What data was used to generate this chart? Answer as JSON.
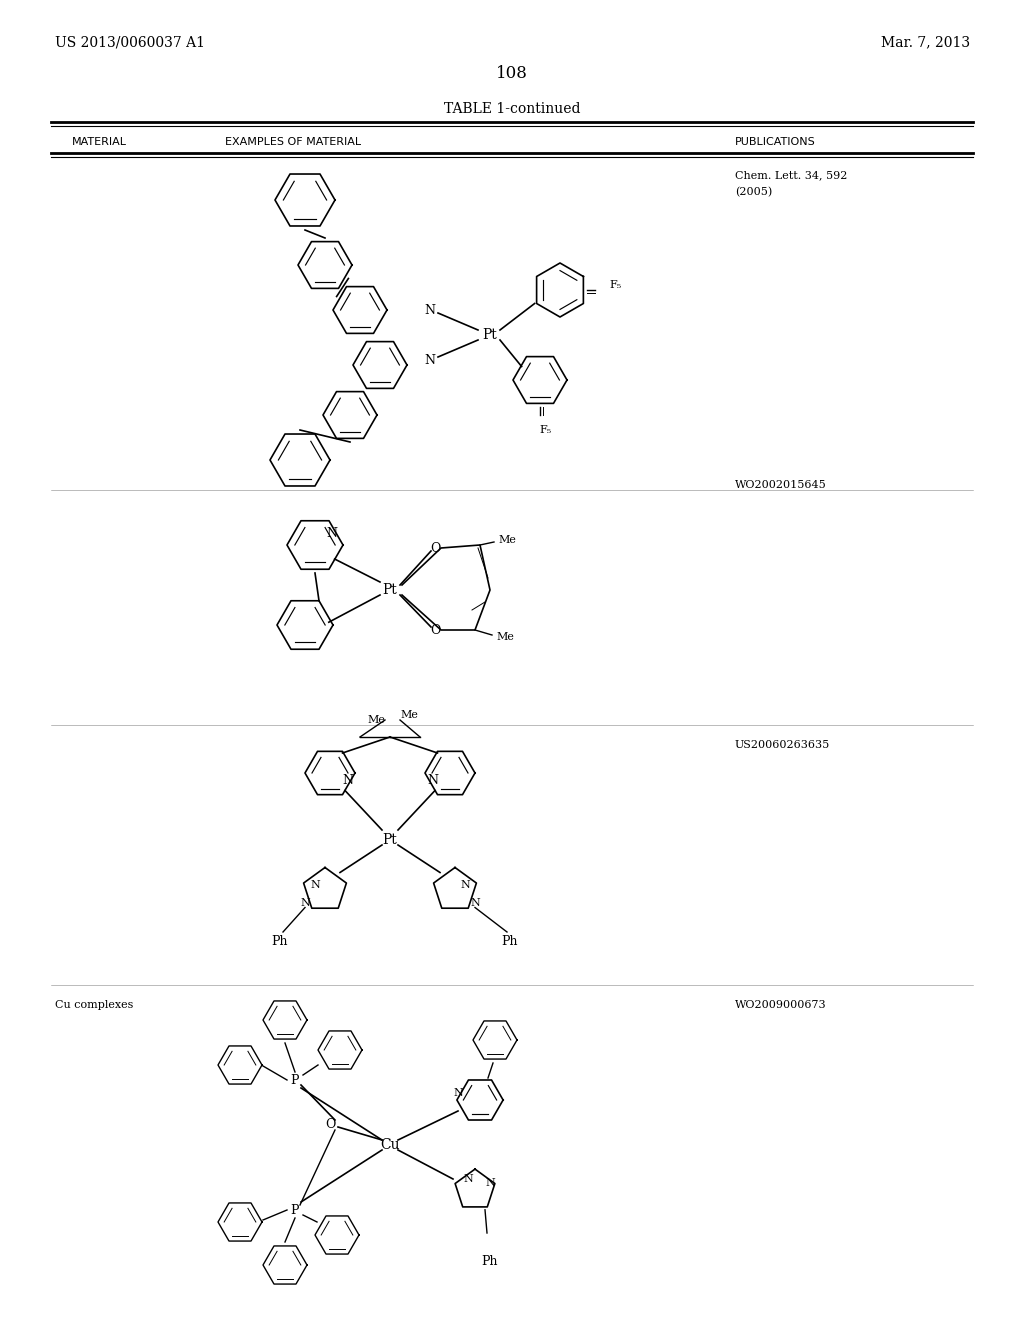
{
  "page_header_left": "US 2013/0060037 A1",
  "page_header_right": "Mar. 7, 2013",
  "page_number": "108",
  "table_title": "TABLE 1-continued",
  "col1_header": "MATERIAL",
  "col2_header": "EXAMPLES OF MATERIAL",
  "col3_header": "PUBLICATIONS",
  "background_color": "#ffffff",
  "text_color": "#000000",
  "pub1": "Chem. Lett. 34, 592\n(2005)",
  "pub2": "WO2002015645",
  "pub3": "US20060263635",
  "pub4": "WO2009000673",
  "mat4": "Cu complexes",
  "line_color": "#000000"
}
